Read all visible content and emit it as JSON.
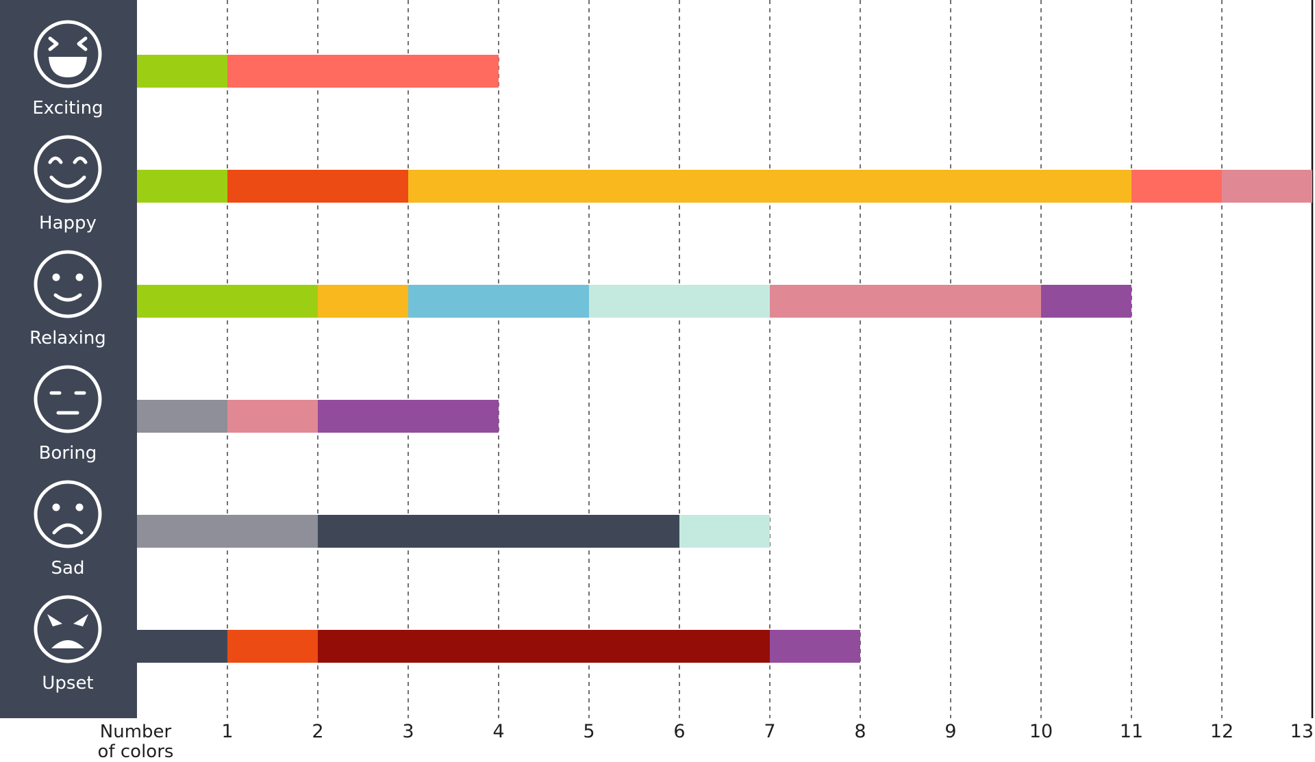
{
  "chart_data": {
    "type": "bar",
    "orientation": "horizontal",
    "stacked": true,
    "xlabel": [
      "Number",
      "of colors"
    ],
    "xlim": [
      0,
      13
    ],
    "xticks": [
      1,
      2,
      3,
      4,
      5,
      6,
      7,
      8,
      9,
      10,
      11,
      12,
      13
    ],
    "grid": "vertical dashed",
    "categories": [
      {
        "label": "Exciting",
        "icon": "laughing-face-icon",
        "segments": [
          {
            "value": 1,
            "color": "#9ccf14"
          },
          {
            "value": 3,
            "color": "#ff6b5f"
          }
        ]
      },
      {
        "label": "Happy",
        "icon": "happy-face-icon",
        "segments": [
          {
            "value": 1,
            "color": "#9ccf14"
          },
          {
            "value": 2,
            "color": "#ec4b14"
          },
          {
            "value": 8,
            "color": "#f8b81e"
          },
          {
            "value": 1,
            "color": "#ff6b5f"
          },
          {
            "value": 1,
            "color": "#e08994"
          }
        ]
      },
      {
        "label": "Relaxing",
        "icon": "smiling-face-icon",
        "segments": [
          {
            "value": 2,
            "color": "#9ccf14"
          },
          {
            "value": 1,
            "color": "#f8b81e"
          },
          {
            "value": 2,
            "color": "#71c2d9"
          },
          {
            "value": 2,
            "color": "#c4eae0"
          },
          {
            "value": 3,
            "color": "#e08994"
          },
          {
            "value": 1,
            "color": "#924c9c"
          }
        ]
      },
      {
        "label": "Boring",
        "icon": "neutral-face-icon",
        "segments": [
          {
            "value": 1,
            "color": "#8e8f98"
          },
          {
            "value": 1,
            "color": "#e08994"
          },
          {
            "value": 2,
            "color": "#924c9c"
          }
        ]
      },
      {
        "label": "Sad",
        "icon": "sad-face-icon",
        "segments": [
          {
            "value": 2,
            "color": "#8e8f98"
          },
          {
            "value": 4,
            "color": "#3f4757"
          },
          {
            "value": 1,
            "color": "#c4eae0"
          }
        ]
      },
      {
        "label": "Upset",
        "icon": "angry-face-icon",
        "segments": [
          {
            "value": 1,
            "color": "#3f4757"
          },
          {
            "value": 1,
            "color": "#ec4b14"
          },
          {
            "value": 5,
            "color": "#940e07"
          },
          {
            "value": 1,
            "color": "#924c9c"
          }
        ]
      }
    ]
  },
  "colors": {
    "sidebar": "#3f4757",
    "icon_stroke": "#ffffff",
    "grid": "#333333",
    "end_line": "#111111"
  }
}
